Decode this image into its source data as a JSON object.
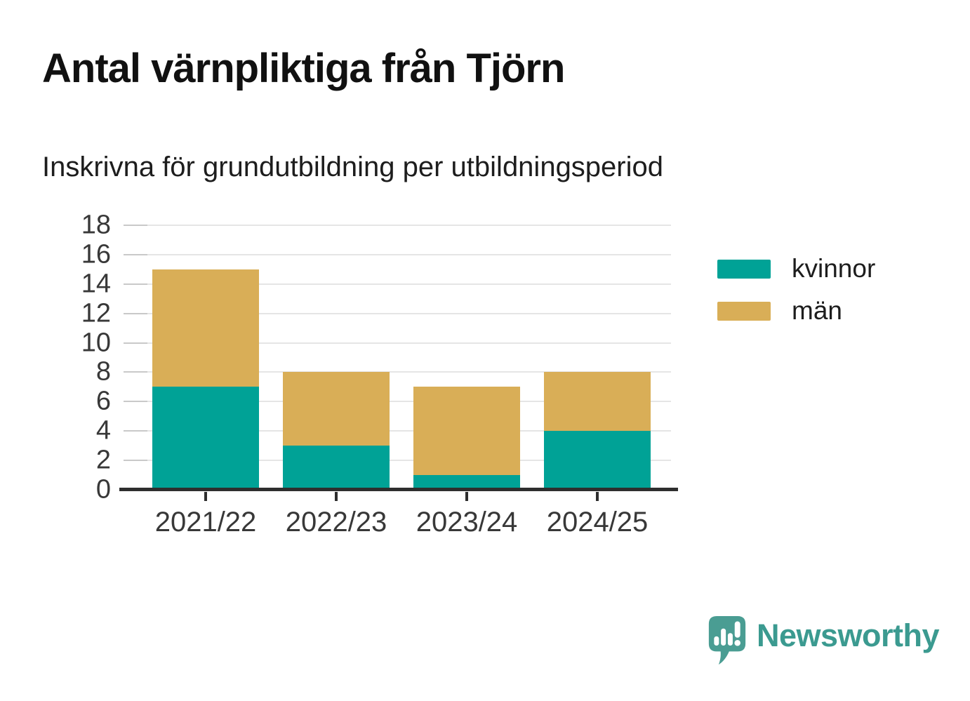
{
  "header": {
    "title": "Antal värnpliktiga från Tjörn",
    "subtitle": "Inskrivna för grundutbildning per utbildningsperiod"
  },
  "chart_data": {
    "type": "bar",
    "stacked": true,
    "title": "Antal värnpliktiga från Tjörn",
    "subtitle": "Inskrivna för grundutbildning per utbildningsperiod",
    "categories": [
      "2021/22",
      "2022/23",
      "2023/24",
      "2024/25"
    ],
    "series": [
      {
        "name": "kvinnor",
        "color": "#00a296",
        "values": [
          7,
          3,
          1,
          4
        ]
      },
      {
        "name": "män",
        "color": "#d9ae57",
        "values": [
          8,
          5,
          6,
          4
        ]
      }
    ],
    "stack_totals": [
      15,
      8,
      7,
      8
    ],
    "xlabel": "",
    "ylabel": "",
    "ylim": [
      0,
      18
    ],
    "ytick_step": 2,
    "ytick_labels": [
      "0",
      "2",
      "4",
      "6",
      "8",
      "10",
      "12",
      "14",
      "16",
      "18"
    ],
    "grid": true,
    "legend_position": "right"
  },
  "legend": {
    "items": [
      {
        "label": "kvinnor",
        "color": "#00a296"
      },
      {
        "label": "män",
        "color": "#d9ae57"
      }
    ]
  },
  "footer": {
    "brand_name": "Newsworthy",
    "brand_text_color": "#3b9a90",
    "logo_color": "#4a9d93"
  },
  "colors": {
    "axis_text": "#383838",
    "gridline": "#e5e5e5",
    "baseline": "#2e2e2e",
    "background": "#ffffff"
  }
}
